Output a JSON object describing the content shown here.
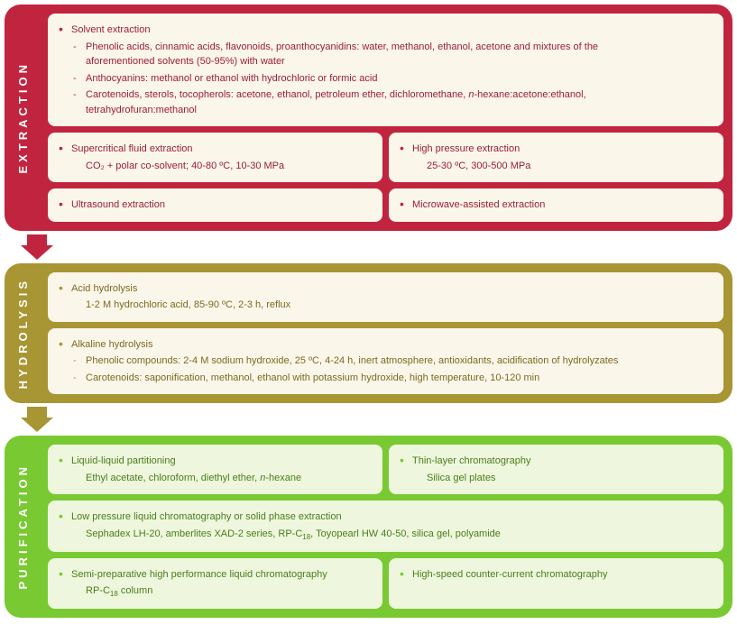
{
  "stages": {
    "extraction": {
      "label": "EXTRACTION",
      "bg": "#c1243f",
      "card_bg": "#fbf6ea",
      "text_color": "#9a1e33",
      "bullet_color": "#c1243f",
      "solvent_title": "Solvent extraction",
      "solvent_sub1_a": "Phenolic acids, cinnamic acids, flavonoids, proanthocyanidins: water, methanol, ethanol, acetone and mixtures of the",
      "solvent_sub1_b": "aforementioned solvents (50-95%) with water",
      "solvent_sub2": "Anthocyanins: methanol or ethanol with hydrochloric or formic acid",
      "solvent_sub3_a": "Carotenoids, sterols, tocopherols: acetone, ethanol, petroleum ether, dichloromethane, ",
      "solvent_sub3_b": "-hexane:acetone:ethanol,",
      "solvent_sub3_c": "tetrahydrofuran:methanol",
      "supercritical_title": "Supercritical fluid extraction",
      "supercritical_sub": "CO₂ + polar co-solvent; 40-80 ºC, 10-30 MPa",
      "hpe_title": "High pressure extraction",
      "hpe_sub": "25-30 ºC, 300-500 MPa",
      "ultrasound": "Ultrasound extraction",
      "microwave": "Microwave-assisted extraction"
    },
    "hydrolysis": {
      "label": "HYDROLYSIS",
      "bg": "#a89533",
      "card_bg": "#fbf6ea",
      "text_color": "#7a6b1f",
      "bullet_color": "#a89533",
      "acid_title": "Acid hydrolysis",
      "acid_sub": "1-2 M hydrochloric acid, 85-90 ºC, 2-3 h, reflux",
      "alk_title": "Alkaline hydrolysis",
      "alk_sub1": "Phenolic compounds: 2-4 M sodium hydroxide, 25 ºC, 4-24 h, inert atmosphere, antioxidants, acidification of hydrolyzates",
      "alk_sub2": "Carotenoids: saponification, methanol, ethanol with potassium hydroxide, high temperature, 10-120 min"
    },
    "purification": {
      "label": "PURIFICATION",
      "bg": "#79c932",
      "card_bg": "#eef7dd",
      "text_color": "#4a7d1b",
      "bullet_color": "#79c932",
      "llp_title": "Liquid-liquid partitioning",
      "llp_sub_a": "Ethyl acetate, chloroform, diethyl ether, ",
      "llp_sub_b": "-hexane",
      "tlc_title": "Thin-layer chromatography",
      "tlc_sub": "Silica gel plates",
      "lplc_title": "Low pressure liquid chromatography or solid phase extraction",
      "lplc_sub_a": "Sephadex LH-20, amberlites XAD-2 series, RP-C",
      "lplc_sub_b": ", Toyopearl HW 40-50, silica gel, polyamide",
      "semi_title": "Semi-preparative high performance liquid chromatography",
      "semi_sub_a": "RP-C",
      "semi_sub_b": " column",
      "hsccc": "High-speed counter-current chromatography",
      "c18": "18"
    }
  },
  "n_italic": "n"
}
